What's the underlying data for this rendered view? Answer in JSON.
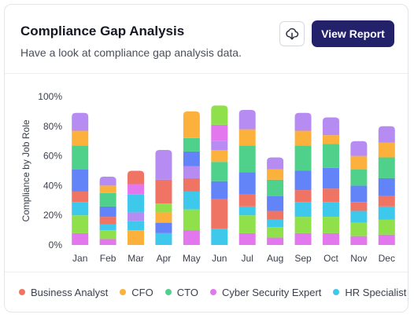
{
  "header": {
    "title": "Compliance Gap Analysis",
    "subtitle": "Have a look at compliance gap analysis data.",
    "download_icon": "cloud-download-icon",
    "view_report_label": "View Report"
  },
  "colors": {
    "business_analyst": "#f07463",
    "cfo": "#fbb13c",
    "cto": "#4fd18b",
    "cyber_security_expert": "#e378ee",
    "hr_specialist": "#3ec8ec",
    "purple": "#b68cf2",
    "blue": "#6383f8",
    "green": "#8fe04a",
    "button": "#24216b"
  },
  "chart_data": {
    "type": "bar",
    "stacked": true,
    "ylabel": "Compliance by Job Role",
    "ylim": [
      0,
      100
    ],
    "yticks": [
      "0%",
      "20%",
      "40%",
      "60%",
      "80%",
      "100%"
    ],
    "grid": true,
    "categories": [
      "Jan",
      "Feb",
      "Mar",
      "Apr",
      "May",
      "Jun",
      "Jul",
      "Aug",
      "Sep",
      "Oct",
      "Nov",
      "Dec"
    ],
    "legend_position": "bottom",
    "legend": [
      "Business Analyst",
      "CFO",
      "CTO",
      "Cyber Security Expert",
      "HR Specialist"
    ],
    "stacks": [
      [
        [
          "#e378ee",
          8
        ],
        [
          "#8fe04a",
          12
        ],
        [
          "#3ec8ec",
          9
        ],
        [
          "#f07463",
          7
        ],
        [
          "#6383f8",
          15
        ],
        [
          "#4fd18b",
          16
        ],
        [
          "#fbb13c",
          10
        ],
        [
          "#b68cf2",
          12
        ]
      ],
      [
        [
          "#e378ee",
          4
        ],
        [
          "#8fe04a",
          6
        ],
        [
          "#3ec8ec",
          4
        ],
        [
          "#f07463",
          5
        ],
        [
          "#6383f8",
          7
        ],
        [
          "#4fd18b",
          9
        ],
        [
          "#fbb13c",
          5
        ],
        [
          "#b68cf2",
          6
        ]
      ],
      [
        [
          "#fbb13c",
          10
        ],
        [
          "#3ec8ec",
          6
        ],
        [
          "#b68cf2",
          6
        ],
        [
          "#3ec8ec",
          12
        ],
        [
          "#e378ee",
          7
        ],
        [
          "#f07463",
          9
        ]
      ],
      [
        [
          "#3ec8ec",
          8
        ],
        [
          "#6383f8",
          7
        ],
        [
          "#fbb13c",
          7
        ],
        [
          "#8fe04a",
          6
        ],
        [
          "#f07463",
          16
        ],
        [
          "#b68cf2",
          20
        ]
      ],
      [
        [
          "#e378ee",
          10
        ],
        [
          "#8fe04a",
          14
        ],
        [
          "#3ec8ec",
          12
        ],
        [
          "#f07463",
          9
        ],
        [
          "#b68cf2",
          8
        ],
        [
          "#6383f8",
          10
        ],
        [
          "#4fd18b",
          9
        ],
        [
          "#fbb13c",
          18
        ]
      ],
      [
        [
          "#3ec8ec",
          11
        ],
        [
          "#f07463",
          20
        ],
        [
          "#6383f8",
          12
        ],
        [
          "#4fd18b",
          13
        ],
        [
          "#fbb13c",
          8
        ],
        [
          "#b68cf2",
          6
        ],
        [
          "#e378ee",
          11
        ],
        [
          "#8fe04a",
          13
        ]
      ],
      [
        [
          "#e378ee",
          8
        ],
        [
          "#8fe04a",
          12
        ],
        [
          "#3ec8ec",
          6
        ],
        [
          "#f07463",
          8
        ],
        [
          "#6383f8",
          15
        ],
        [
          "#4fd18b",
          18
        ],
        [
          "#fbb13c",
          11
        ],
        [
          "#b68cf2",
          13
        ]
      ],
      [
        [
          "#e378ee",
          5
        ],
        [
          "#8fe04a",
          7
        ],
        [
          "#3ec8ec",
          5
        ],
        [
          "#f07463",
          6
        ],
        [
          "#6383f8",
          10
        ],
        [
          "#4fd18b",
          11
        ],
        [
          "#fbb13c",
          7
        ],
        [
          "#b68cf2",
          8
        ]
      ],
      [
        [
          "#e378ee",
          8
        ],
        [
          "#8fe04a",
          11
        ],
        [
          "#3ec8ec",
          10
        ],
        [
          "#f07463",
          8
        ],
        [
          "#6383f8",
          13
        ],
        [
          "#4fd18b",
          17
        ],
        [
          "#fbb13c",
          10
        ],
        [
          "#b68cf2",
          12
        ]
      ],
      [
        [
          "#e378ee",
          8
        ],
        [
          "#8fe04a",
          11
        ],
        [
          "#3ec8ec",
          10
        ],
        [
          "#f07463",
          9
        ],
        [
          "#6383f8",
          14
        ],
        [
          "#4fd18b",
          16
        ],
        [
          "#fbb13c",
          6
        ],
        [
          "#b68cf2",
          12
        ]
      ],
      [
        [
          "#e378ee",
          6
        ],
        [
          "#8fe04a",
          9
        ],
        [
          "#3ec8ec",
          8
        ],
        [
          "#f07463",
          6
        ],
        [
          "#6383f8",
          11
        ],
        [
          "#4fd18b",
          11
        ],
        [
          "#fbb13c",
          9
        ],
        [
          "#b68cf2",
          10
        ]
      ],
      [
        [
          "#e378ee",
          7
        ],
        [
          "#8fe04a",
          10
        ],
        [
          "#3ec8ec",
          9
        ],
        [
          "#f07463",
          7
        ],
        [
          "#6383f8",
          12
        ],
        [
          "#4fd18b",
          14
        ],
        [
          "#fbb13c",
          10
        ],
        [
          "#b68cf2",
          11
        ]
      ]
    ]
  }
}
